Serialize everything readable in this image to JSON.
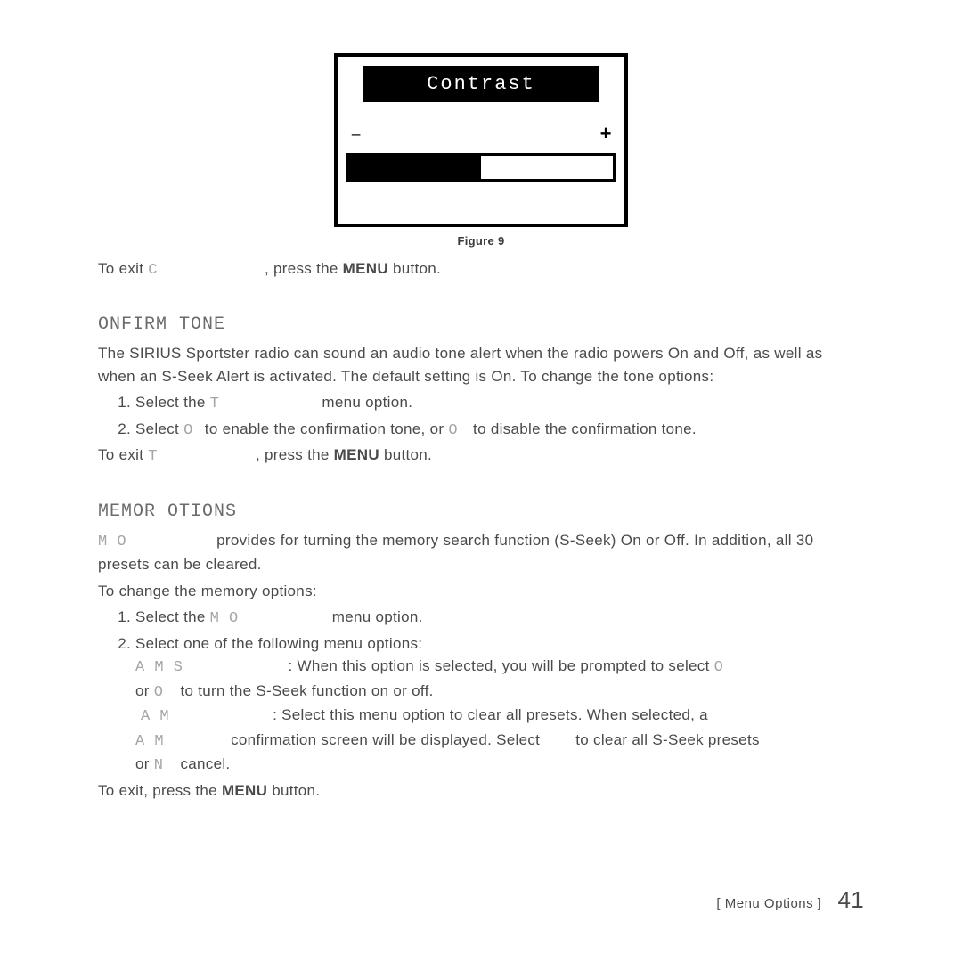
{
  "figure": {
    "title": "Contrast",
    "minus": "–",
    "plus": "+",
    "fill_percent": 50,
    "caption": "Figure 9",
    "frame_border_color": "#000000",
    "title_bg": "#000000",
    "title_fg": "#ffffff",
    "bar_fill_color": "#000000"
  },
  "contrast_exit": {
    "prefix": "To exit ",
    "mono": "C",
    "mid": ", press the ",
    "bold": "MENU",
    "suffix": " button."
  },
  "confirm": {
    "heading": "ONFIRM TONE",
    "intro": "The SIRIUS Sportster radio can sound an audio tone alert when the radio powers On and Off, as well as when an S-Seek Alert is activated. The default setting is On. To change the tone options:",
    "step1_a": "Select the ",
    "step1_mono": "T",
    "step1_b": " menu option.",
    "step2_a": "Select ",
    "step2_mono1": "O",
    "step2_b": " to enable the confirmation tone, or ",
    "step2_mono2": "O",
    "step2_c": " to disable the confirmation tone.",
    "exit_a": "To exit ",
    "exit_mono": "T",
    "exit_b": ", press the ",
    "exit_bold": "MENU",
    "exit_c": " button."
  },
  "memory": {
    "heading": "MEMOR  OTIONS",
    "intro_mono": "M O",
    "intro_rest": " provides for turning the memory search function (S-Seek) On or Off. In addition, all 30 presets can be cleared.",
    "change": "To change the memory options:",
    "step1_a": "Select the ",
    "step1_mono": "M O",
    "step1_b": " menu option.",
    "step2": "Select one of the following menu options:",
    "opt1_mono": "A M  S",
    "opt1_a": ": When this option is selected, you will be prompted to select ",
    "opt1_mono2": "O",
    "opt1_line2a": "or ",
    "opt1_mono3": "O",
    "opt1_line2b": " to turn the S-Seek function on or off.",
    "opt2_mono": "A M",
    "opt2_a": ": Select this menu option to clear all presets. When selected, a",
    "opt2_line2_mono": "A M",
    "opt2_line2a": " confirmation screen will be displayed. Select ",
    "opt2_line2b": " to clear all S-Seek presets",
    "opt2_line3a": "or ",
    "opt2_line3_mono": "N",
    "opt2_line3b": " cancel.",
    "exit_a": "To exit, press the ",
    "exit_bold": "MENU",
    "exit_b": " button."
  },
  "footer": {
    "label": "[ Menu Options ]",
    "page": "41"
  }
}
